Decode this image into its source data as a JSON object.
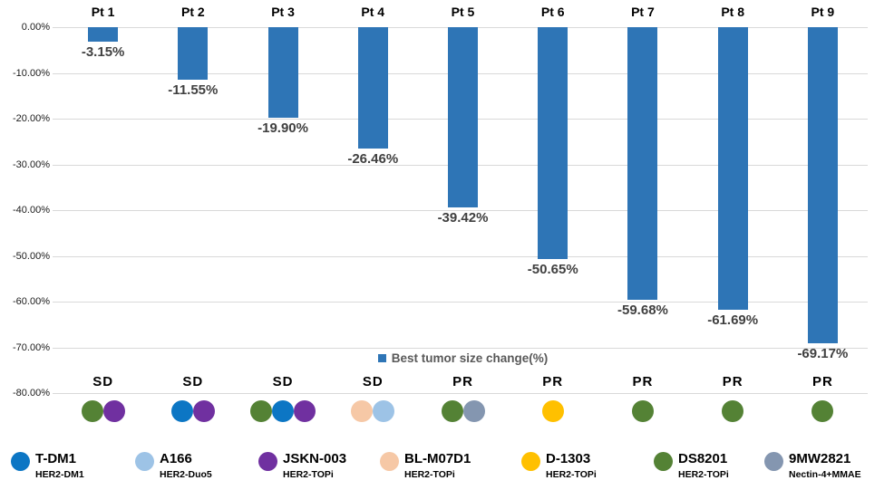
{
  "chart_data": {
    "type": "bar",
    "title": "",
    "series_name": "Best tumor size change(%)",
    "categories": [
      "Pt 1",
      "Pt 2",
      "Pt 3",
      "Pt 4",
      "Pt 5",
      "Pt 6",
      "Pt 7",
      "Pt 8",
      "Pt 9"
    ],
    "values": [
      -3.15,
      -11.55,
      -19.9,
      -26.46,
      -39.42,
      -50.65,
      -59.68,
      -61.69,
      -69.17
    ],
    "value_labels": [
      "-3.15%",
      "-11.55%",
      "-19.90%",
      "-26.46%",
      "-39.42%",
      "-50.65%",
      "-59.68%",
      "-61.69%",
      "-69.17%"
    ],
    "response_status": [
      "SD",
      "SD",
      "SD",
      "SD",
      "PR",
      "PR",
      "PR",
      "PR",
      "PR"
    ],
    "prior_treatment_dots": [
      [
        "DS8201",
        "JSKN-003"
      ],
      [
        "T-DM1",
        "JSKN-003"
      ],
      [
        "DS8201",
        "T-DM1",
        "JSKN-003"
      ],
      [
        "BL-M07D1",
        "A166"
      ],
      [
        "DS8201",
        "9MW2821"
      ],
      [
        "D-1303"
      ],
      [
        "DS8201"
      ],
      [
        "DS8201"
      ],
      [
        "DS8201"
      ]
    ],
    "xlabel": "",
    "ylabel": "",
    "ylim": [
      -80,
      0
    ],
    "y_ticks": [
      "0.00%",
      "-10.00%",
      "-20.00%",
      "-30.00%",
      "-40.00%",
      "-50.00%",
      "-60.00%",
      "-70.00%",
      "-80.00%"
    ],
    "grid": true,
    "legend_position": "inside-bottom-center",
    "bar_color": "#2E75B6"
  },
  "series_legend": {
    "label": "Best tumor size change(%)",
    "marker_color": "#2E75B6"
  },
  "drug_legend": [
    {
      "name": "T-DM1",
      "mechanism": "HER2-DM1",
      "color": "#0C76C4"
    },
    {
      "name": "A166",
      "mechanism": "HER2-Duo5",
      "color": "#9DC3E6"
    },
    {
      "name": "JSKN-003",
      "mechanism": "HER2-TOPi",
      "color": "#7030A0"
    },
    {
      "name": "BL-M07D1",
      "mechanism": "HER2-TOPi",
      "color": "#F6C8A6"
    },
    {
      "name": "D-1303",
      "mechanism": "HER2-TOPi",
      "color": "#FFC000"
    },
    {
      "name": "DS8201",
      "mechanism": "HER2-TOPi",
      "color": "#548235"
    },
    {
      "name": "9MW2821",
      "mechanism": "Nectin-4+MMAE",
      "color": "#8496B0"
    }
  ],
  "colors": {
    "bar": "#2E75B6",
    "gridline": "#D9D9D9",
    "value_label_text": "#404040",
    "series_legend_text": "#595959"
  }
}
